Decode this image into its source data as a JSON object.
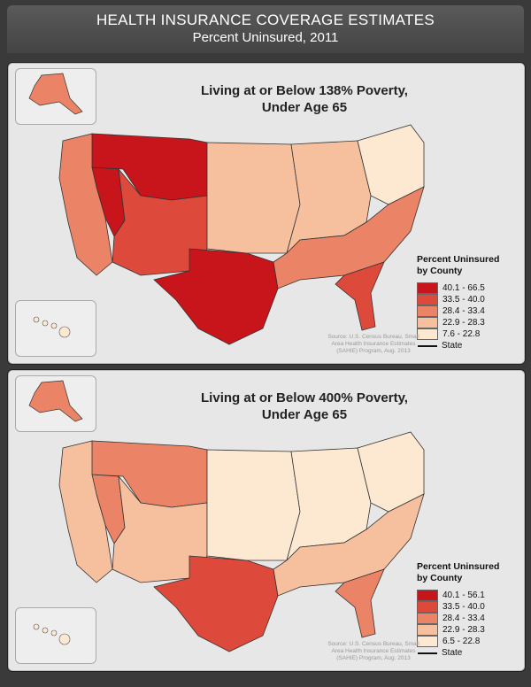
{
  "header": {
    "title": "HEALTH INSURANCE COVERAGE ESTIMATES",
    "subtitle": "Percent Uninsured, 2011"
  },
  "colors": {
    "c1": "#c8141b",
    "c2": "#dd4a3c",
    "c3": "#eb8466",
    "c4": "#f6c09e",
    "c5": "#fde8d2"
  },
  "maps": [
    {
      "title_line1": "Living at or Below 138% Poverty,",
      "title_line2": "Under Age 65",
      "legend_title_line1": "Percent Uninsured",
      "legend_title_line2": "by County",
      "legend": [
        "40.1 - 66.5",
        "33.5 - 40.0",
        "28.4 - 33.4",
        "22.9 - 28.3",
        "7.6 - 22.8"
      ],
      "state_label": "State",
      "source": [
        "Source: U.S. Census Bureau, Small",
        "Area Health Insurance Estimates",
        "(SAHIE) Program, Aug. 2013"
      ],
      "regions": {
        "west_coast": 2,
        "nevada": 0,
        "northern_rockies": 0,
        "southwest": 1,
        "texas_oklahoma": 0,
        "plains": 3,
        "midwest": 3,
        "northeast": 4,
        "southeast": 2,
        "florida": 1,
        "alaska": 2,
        "hawaii": 4
      }
    },
    {
      "title_line1": "Living at or Below 400% Poverty,",
      "title_line2": "Under Age 65",
      "legend_title_line1": "Percent Uninsured",
      "legend_title_line2": "by County",
      "legend": [
        "40.1 - 56.1",
        "33.5 - 40.0",
        "28.4 - 33.4",
        "22.9 - 28.3",
        "6.5 - 22.8"
      ],
      "state_label": "State",
      "source": [
        "Source: U.S. Census Bureau, Small",
        "Area Health Insurance Estimates",
        "(SAHIE) Program, Aug. 2013"
      ],
      "regions": {
        "west_coast": 3,
        "nevada": 2,
        "northern_rockies": 2,
        "southwest": 3,
        "texas_oklahoma": 1,
        "plains": 4,
        "midwest": 4,
        "northeast": 4,
        "southeast": 3,
        "florida": 2,
        "alaska": 2,
        "hawaii": 4
      }
    }
  ]
}
